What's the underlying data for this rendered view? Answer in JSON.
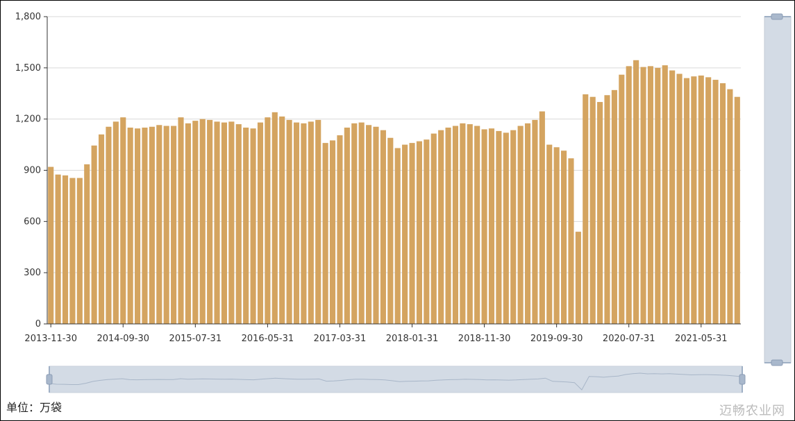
{
  "chart_data": {
    "type": "bar",
    "bar_color": "#D4A460",
    "grid": true,
    "ylim": [
      0,
      1800
    ],
    "yticks": [
      0,
      300,
      600,
      900,
      1200,
      1500,
      1800
    ],
    "ytick_labels": [
      "0",
      "300",
      "600",
      "900",
      "1,200",
      "1,500",
      "1,800"
    ],
    "xtick_labels": [
      "2013-11-30",
      "2014-09-30",
      "2015-07-31",
      "2016-05-31",
      "2017-03-31",
      "2018-01-31",
      "2018-11-30",
      "2019-09-30",
      "2020-07-31",
      "2021-05-31"
    ],
    "xtick_every": 10,
    "values": [
      920,
      875,
      870,
      855,
      855,
      935,
      1045,
      1110,
      1155,
      1185,
      1210,
      1150,
      1145,
      1150,
      1155,
      1165,
      1160,
      1160,
      1210,
      1175,
      1190,
      1200,
      1195,
      1185,
      1180,
      1185,
      1170,
      1150,
      1145,
      1180,
      1210,
      1240,
      1215,
      1195,
      1180,
      1175,
      1185,
      1195,
      1060,
      1075,
      1105,
      1150,
      1175,
      1180,
      1165,
      1155,
      1135,
      1090,
      1030,
      1050,
      1060,
      1070,
      1080,
      1115,
      1135,
      1150,
      1160,
      1175,
      1170,
      1160,
      1140,
      1145,
      1130,
      1120,
      1135,
      1160,
      1175,
      1195,
      1245,
      1050,
      1035,
      1015,
      970,
      540,
      1345,
      1330,
      1300,
      1340,
      1370,
      1460,
      1510,
      1545,
      1505,
      1510,
      1500,
      1515,
      1485,
      1465,
      1440,
      1450,
      1455,
      1445,
      1430,
      1410,
      1375,
      1330
    ]
  },
  "footer": {
    "unit_label": "单位：万袋",
    "brand": "迈畅农业网"
  }
}
